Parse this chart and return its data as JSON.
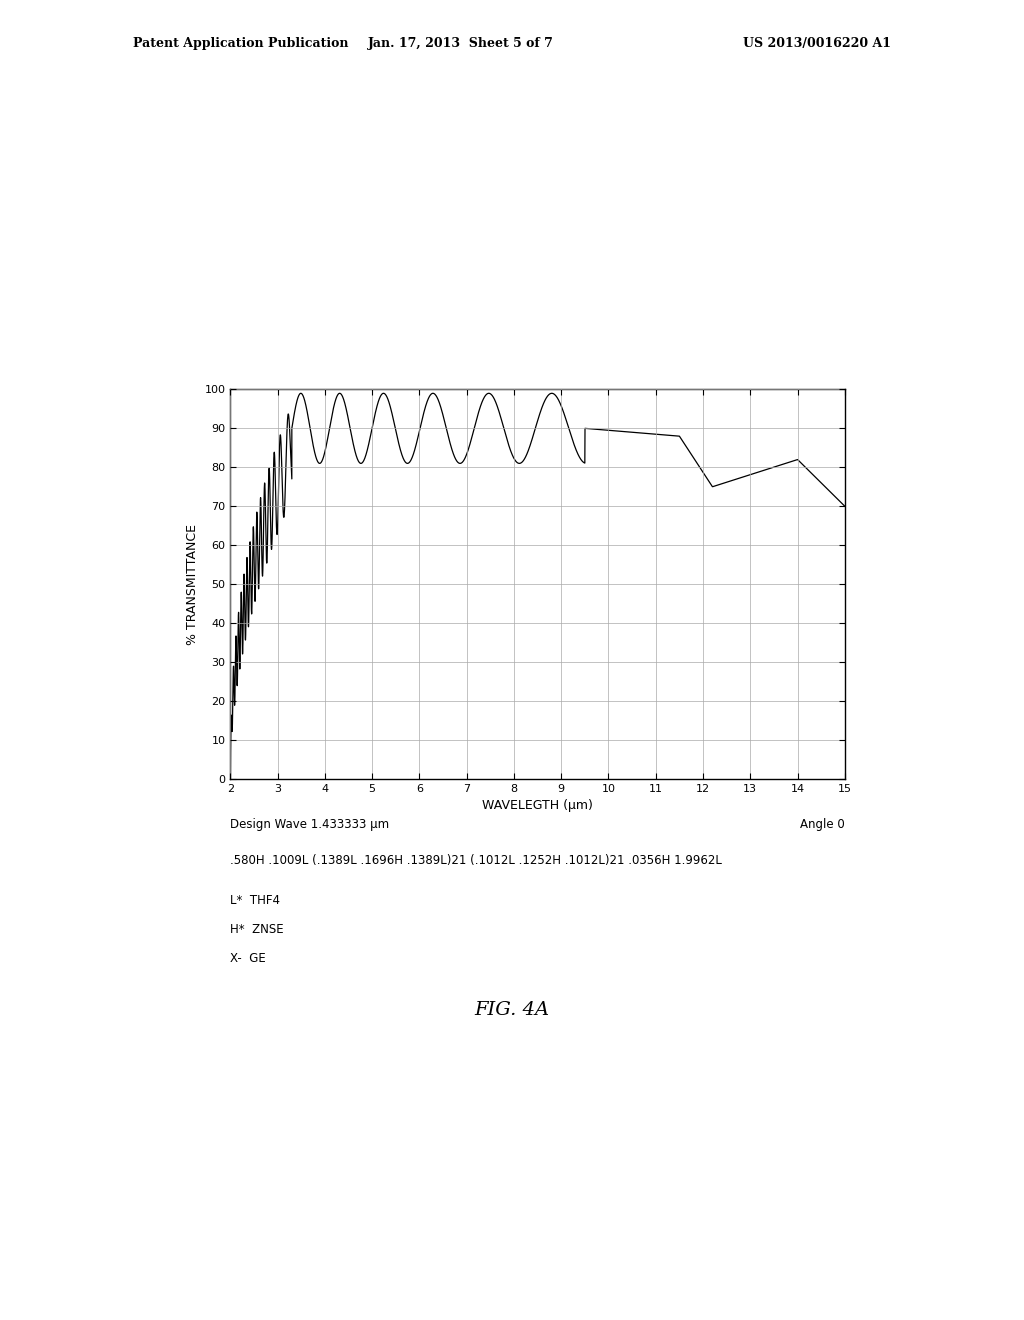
{
  "title_header_left": "Patent Application Publication",
  "title_header_mid": "Jan. 17, 2013  Sheet 5 of 7",
  "title_header_right": "US 2013/0016220 A1",
  "xlabel": "WAVELEGTH (μm)",
  "ylabel": "% TRANSMITTANCE",
  "xlim": [
    2,
    15
  ],
  "ylim": [
    0,
    100
  ],
  "xticks": [
    2,
    3,
    4,
    5,
    6,
    7,
    8,
    9,
    10,
    11,
    12,
    13,
    14,
    15
  ],
  "yticks": [
    0,
    10,
    20,
    30,
    40,
    50,
    60,
    70,
    80,
    90,
    100
  ],
  "design_wave_text": "Design Wave 1.433333 μm",
  "angle_text": "Angle 0",
  "formula_text": ".580H .1009L (.1389L .1696H .1389L)21 (.1012L .1252H .1012L)21 .0356H 1.9962L",
  "legend_line1": "L*  THF4",
  "legend_line2": "H*  ZNSE",
  "legend_line3": "X-  GE",
  "fig_label": "FIG. 4A",
  "line_color": "#000000",
  "background_color": "#ffffff",
  "grid_color": "#aaaaaa"
}
